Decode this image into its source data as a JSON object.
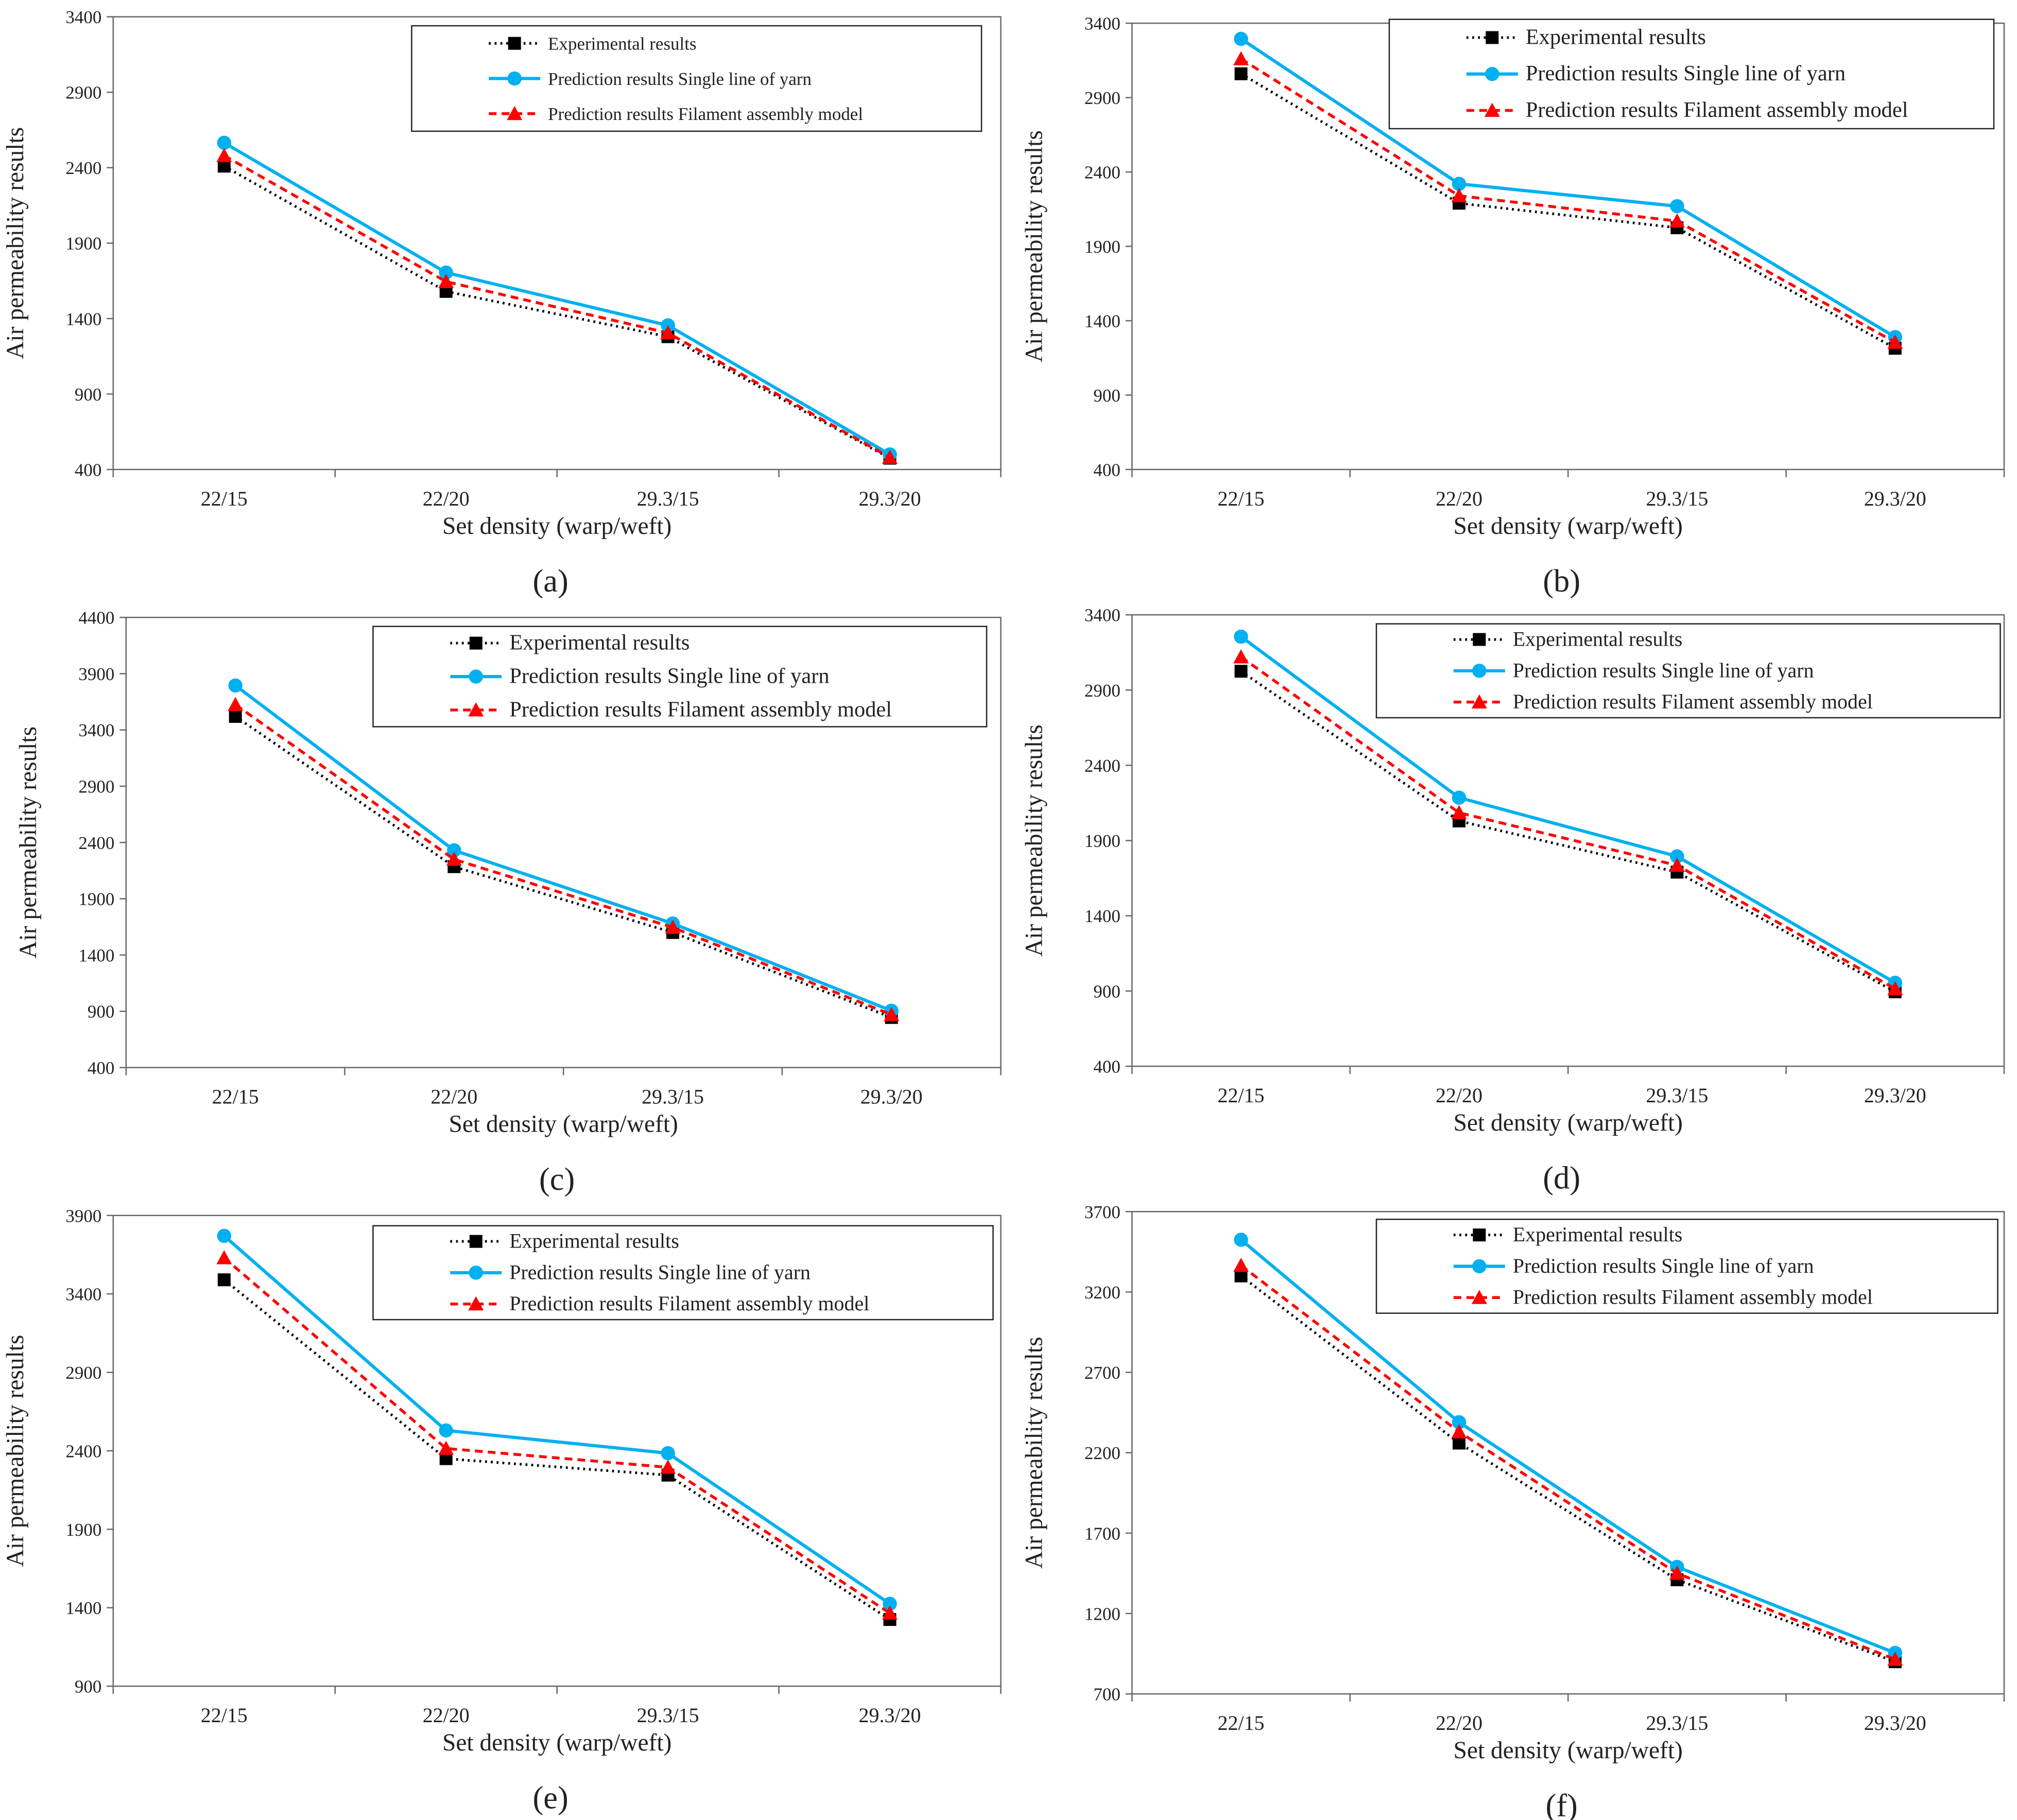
{
  "colors": {
    "experimental": "#000000",
    "single": "#00b0f0",
    "filament": "#ff0000"
  },
  "chart_data": [
    {
      "type": "line",
      "caption": "(a)",
      "categories": [
        "22/15",
        "22/20",
        "29.3/15",
        "29.3/20"
      ],
      "xlabel": "Set density (warp/weft)",
      "ylabel": "Air permeability results",
      "ylim": [
        400,
        3400
      ],
      "yticks": [
        400,
        900,
        1400,
        1900,
        2400,
        2900,
        3400
      ],
      "legend": "top-right",
      "series": [
        {
          "name": "Experimental  results",
          "values": [
            2410,
            1580,
            1280,
            475
          ]
        },
        {
          "name": "Prediction results Single line of yarn",
          "values": [
            2565,
            1705,
            1355,
            500
          ]
        },
        {
          "name": "Prediction results Filament assembly model",
          "values": [
            2480,
            1645,
            1305,
            480
          ]
        }
      ]
    },
    {
      "type": "line",
      "caption": "(b)",
      "categories": [
        "22/15",
        "22/20",
        "29.3/15",
        "29.3/20"
      ],
      "xlabel": "Set density (warp/weft)",
      "ylabel": "Air permeability results",
      "ylim": [
        400,
        3400
      ],
      "yticks": [
        400,
        900,
        1400,
        1900,
        2400,
        2900,
        3400
      ],
      "legend": "top-right",
      "series": [
        {
          "name": "Experimental  results",
          "values": [
            3060,
            2190,
            2025,
            1215
          ]
        },
        {
          "name": "Prediction results Single line of yarn",
          "values": [
            3295,
            2320,
            2170,
            1290
          ]
        },
        {
          "name": "Prediction results Filament assembly model",
          "values": [
            3160,
            2240,
            2070,
            1255
          ]
        }
      ]
    },
    {
      "type": "line",
      "caption": "(c)",
      "categories": [
        "22/15",
        "22/20",
        "29.3/15",
        "29.3/20"
      ],
      "xlabel": "Set density (warp/weft)",
      "ylabel": "Air permeability results",
      "ylim": [
        400,
        4400
      ],
      "yticks": [
        400,
        900,
        1400,
        1900,
        2400,
        2900,
        3400,
        3900,
        4400
      ],
      "legend": "top-right",
      "series": [
        {
          "name": "Experimental  results",
          "values": [
            3520,
            2185,
            1600,
            845
          ]
        },
        {
          "name": "Prediction results Single line of yarn",
          "values": [
            3795,
            2330,
            1680,
            905
          ]
        },
        {
          "name": "Prediction results Filament assembly model",
          "values": [
            3625,
            2250,
            1645,
            870
          ]
        }
      ]
    },
    {
      "type": "line",
      "caption": "(d)",
      "categories": [
        "22/15",
        "22/20",
        "29.3/15",
        "29.3/20"
      ],
      "xlabel": "Set density (warp/weft)",
      "ylabel": "Air permeability results",
      "ylim": [
        400,
        3400
      ],
      "yticks": [
        400,
        900,
        1400,
        1900,
        2400,
        2900,
        3400
      ],
      "legend": "top-right",
      "series": [
        {
          "name": "Experimental  results",
          "values": [
            3025,
            2030,
            1690,
            895
          ]
        },
        {
          "name": "Prediction results Single line of yarn",
          "values": [
            3255,
            2185,
            1795,
            955
          ]
        },
        {
          "name": "Prediction results Filament assembly model",
          "values": [
            3120,
            2085,
            1735,
            915
          ]
        }
      ]
    },
    {
      "type": "line",
      "caption": "(e)",
      "categories": [
        "22/15",
        "22/20",
        "29.3/15",
        "29.3/20"
      ],
      "xlabel": "Set density (warp/weft)",
      "ylabel": "Air permeability results",
      "ylim": [
        900,
        3900
      ],
      "yticks": [
        900,
        1400,
        1900,
        2400,
        2900,
        3400,
        3900
      ],
      "legend": "top-right",
      "series": [
        {
          "name": "Experimental  results",
          "values": [
            3490,
            2350,
            2245,
            1325
          ]
        },
        {
          "name": "Prediction  results Single line of yarn",
          "values": [
            3770,
            2530,
            2385,
            1425
          ]
        },
        {
          "name": "Prediction results Filament assembly model",
          "values": [
            3630,
            2415,
            2295,
            1365
          ]
        }
      ]
    },
    {
      "type": "line",
      "caption": "(f)",
      "categories": [
        "22/15",
        "22/20",
        "29.3/15",
        "29.3/20"
      ],
      "xlabel": "Set density (warp/weft)",
      "ylabel": "Air permeability results",
      "ylim": [
        700,
        3700
      ],
      "yticks": [
        700,
        1200,
        1700,
        2200,
        2700,
        3200,
        3700
      ],
      "legend": "top-right",
      "series": [
        {
          "name": "Experimental  results",
          "values": [
            3300,
            2260,
            1410,
            900
          ]
        },
        {
          "name": "Prediction results Single line of yarn",
          "values": [
            3525,
            2390,
            1490,
            955
          ]
        },
        {
          "name": "Prediction results Filament assembly model",
          "values": [
            3365,
            2330,
            1450,
            915
          ]
        }
      ]
    }
  ]
}
